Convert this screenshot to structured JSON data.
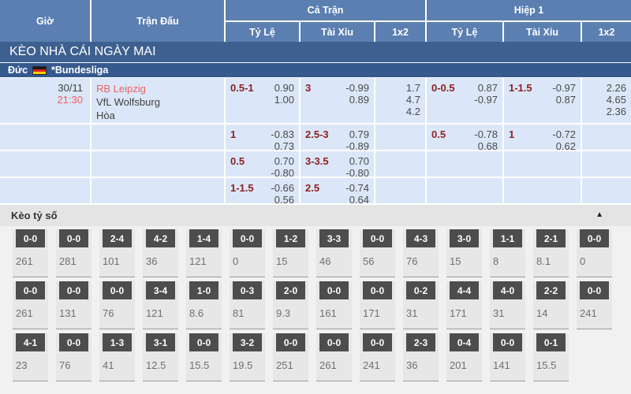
{
  "colors": {
    "header_blue": "#5b7fb1",
    "banner_blue": "#3d6090",
    "league_blue": "#36598e",
    "row_light_blue": "#dbe7f8",
    "handicap_red": "#8e1f1f",
    "accent_red": "#f25c5c",
    "score_box_dark": "#4d4d4d"
  },
  "header": {
    "time": "Giờ",
    "match": "Trận Đấu",
    "full_time": "Cả Trận",
    "first_half": "Hiệp 1",
    "handicap": "Tỷ Lệ",
    "over_under": "Tài Xỉu",
    "one_x_two": "1x2"
  },
  "banner": {
    "title": "KÈO NHÀ CÁI NGÀY MAI"
  },
  "league": {
    "country": "Đức",
    "flag_icon": "germany-flag",
    "name": "*Bundesliga"
  },
  "match": {
    "date": "30/11",
    "time": "21:30",
    "teams": {
      "home": "RB Leipzig",
      "away": "VfL Wolfsburg",
      "draw": "Hòa"
    },
    "odds_rows": [
      {
        "ft_handicap": {
          "line": "0.5-1",
          "top": "0.90",
          "bottom": "1.00"
        },
        "ft_over_under": {
          "line": "3",
          "top": "-0.99",
          "bottom": "0.89"
        },
        "ft_1x2": {
          "home": "1.7",
          "draw": "4.7",
          "away": "4.2"
        },
        "fh_handicap": {
          "line": "0-0.5",
          "top": "0.87",
          "bottom": "-0.97"
        },
        "fh_over_under": {
          "line": "1-1.5",
          "top": "-0.97",
          "bottom": "0.87"
        },
        "fh_1x2": {
          "home": "2.26",
          "draw": "4.65",
          "away": "2.36"
        }
      },
      {
        "ft_handicap": {
          "line": "1",
          "top": "-0.83",
          "bottom": "0.73"
        },
        "ft_over_under": {
          "line": "2.5-3",
          "top": "0.79",
          "bottom": "-0.89"
        },
        "fh_handicap": {
          "line": "0.5",
          "top": "-0.78",
          "bottom": "0.68"
        },
        "fh_over_under": {
          "line": "1",
          "top": "-0.72",
          "bottom": "0.62"
        }
      },
      {
        "ft_handicap": {
          "line": "0.5",
          "top": "0.70",
          "bottom": "-0.80"
        },
        "ft_over_under": {
          "line": "3-3.5",
          "top": "0.70",
          "bottom": "-0.80"
        }
      },
      {
        "ft_handicap": {
          "line": "1-1.5",
          "top": "-0.66",
          "bottom": "0.56"
        },
        "ft_over_under": {
          "line": "2.5",
          "top": "-0.74",
          "bottom": "0.64"
        }
      }
    ]
  },
  "correct_score": {
    "title": "Kèo tỷ số",
    "collapse_icon": "▲",
    "rows": [
      [
        {
          "score": "0-0",
          "odds": "261"
        },
        {
          "score": "0-0",
          "odds": "281"
        },
        {
          "score": "2-4",
          "odds": "101"
        },
        {
          "score": "4-2",
          "odds": "36"
        },
        {
          "score": "1-4",
          "odds": "121"
        },
        {
          "score": "0-0",
          "odds": "0"
        },
        {
          "score": "1-2",
          "odds": "15"
        },
        {
          "score": "3-3",
          "odds": "46"
        },
        {
          "score": "0-0",
          "odds": "56"
        },
        {
          "score": "4-3",
          "odds": "76"
        },
        {
          "score": "3-0",
          "odds": "15"
        },
        {
          "score": "1-1",
          "odds": "8"
        },
        {
          "score": "2-1",
          "odds": "8.1"
        },
        {
          "score": "0-0",
          "odds": "0"
        }
      ],
      [
        {
          "score": "0-0",
          "odds": "261"
        },
        {
          "score": "0-0",
          "odds": "131"
        },
        {
          "score": "0-0",
          "odds": "76"
        },
        {
          "score": "3-4",
          "odds": "121"
        },
        {
          "score": "1-0",
          "odds": "8.6"
        },
        {
          "score": "0-3",
          "odds": "81"
        },
        {
          "score": "2-0",
          "odds": "9.3"
        },
        {
          "score": "0-0",
          "odds": "161"
        },
        {
          "score": "0-0",
          "odds": "171"
        },
        {
          "score": "0-2",
          "odds": "31"
        },
        {
          "score": "4-4",
          "odds": "171"
        },
        {
          "score": "4-0",
          "odds": "31"
        },
        {
          "score": "2-2",
          "odds": "14"
        },
        {
          "score": "0-0",
          "odds": "241"
        }
      ],
      [
        {
          "score": "4-1",
          "odds": "23"
        },
        {
          "score": "0-0",
          "odds": "76"
        },
        {
          "score": "1-3",
          "odds": "41"
        },
        {
          "score": "3-1",
          "odds": "12.5"
        },
        {
          "score": "0-0",
          "odds": "15.5"
        },
        {
          "score": "3-2",
          "odds": "19.5"
        },
        {
          "score": "0-0",
          "odds": "251"
        },
        {
          "score": "0-0",
          "odds": "261"
        },
        {
          "score": "0-0",
          "odds": "241"
        },
        {
          "score": "2-3",
          "odds": "36"
        },
        {
          "score": "0-4",
          "odds": "201"
        },
        {
          "score": "0-0",
          "odds": "141"
        },
        {
          "score": "0-1",
          "odds": "15.5"
        }
      ]
    ]
  }
}
